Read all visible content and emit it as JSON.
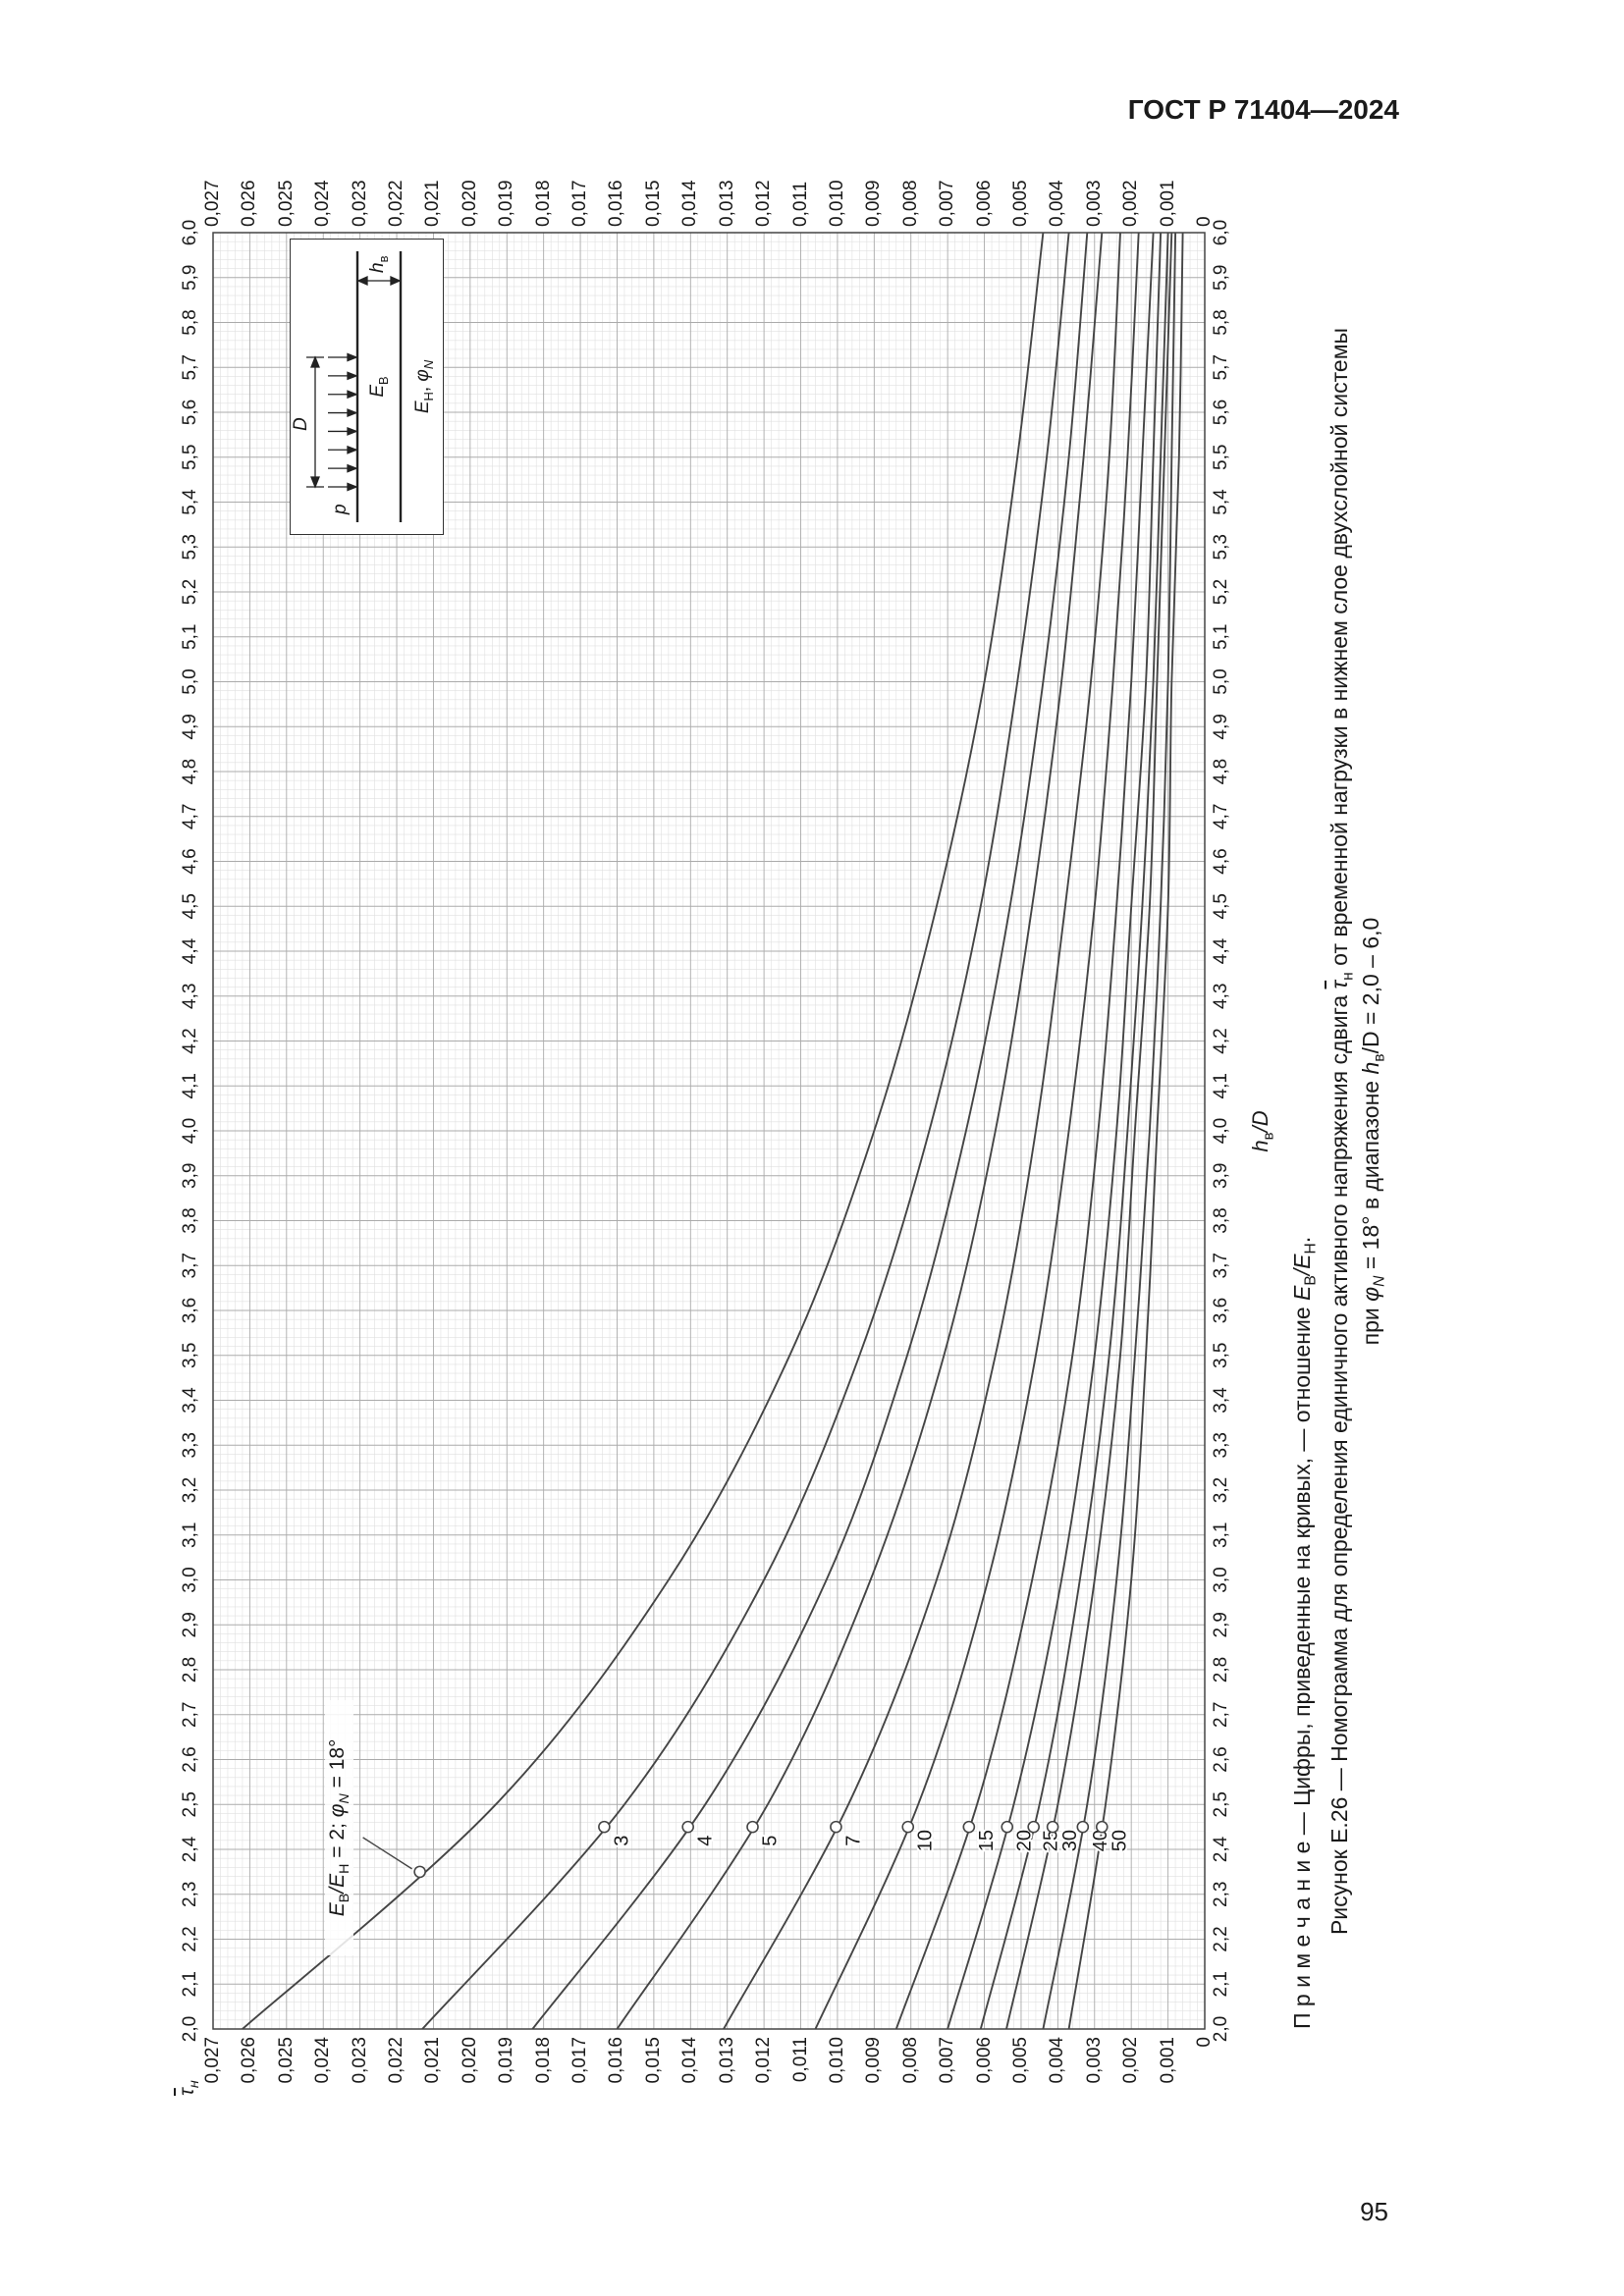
{
  "page": {
    "header": "ГОСТ Р 71404—2024",
    "page_number": "95"
  },
  "figure": {
    "y_title": {
      "tau": "τ",
      "sub": "н"
    },
    "x_title": {
      "h": "h",
      "sub": "в",
      "post": "/D"
    },
    "annotation": {
      "e1": "Е",
      "s1": "В",
      "e2": "/Е",
      "s2": "Н",
      "mid": " = 2; ",
      "phi": "φ",
      "phisub": "N",
      "end": " = 18°"
    },
    "note": {
      "p1": "П р и м е ч а н и е — Цифры, приведенные на кривых, — отношение ",
      "e1": "Е",
      "s1": "В",
      "e2": "/Е",
      "s2": "Н",
      "end": "."
    },
    "caption1": {
      "p1": "Рисунок Е.26 — Номограмма для определения единичного активного напряжения сдвига ",
      "tau": "τ",
      "sub": "н",
      "p2": " от временной нагрузки в нижнем слое двухслойной системы"
    },
    "caption2": {
      "p1": "при ",
      "phi": "φ",
      "phisub": "N",
      "p2": " = 18° в диапазоне ",
      "h": "h",
      "hsub": "в",
      "p3": "/D = 2,0 – 6,0"
    },
    "inset": {
      "p": "p",
      "d": "D",
      "eb": {
        "e": "Е",
        "s": "В"
      },
      "hb": {
        "h": "h",
        "s": "в"
      },
      "en": {
        "e": "Е",
        "s": "Н",
        "mid": ", ",
        "phi": "φ",
        "sub": "N"
      }
    }
  },
  "chart_data": {
    "type": "line",
    "title": "Номограмма для определения единичного активного напряжения сдвига в нижнем слое двухслойной системы при φN = 18°",
    "xlabel": "hв/D",
    "ylabel": "τн (с чертой)",
    "xlim": [
      2.0,
      6.0
    ],
    "ylim": [
      0,
      0.027
    ],
    "grid": {
      "minor_x_step": 0.02,
      "minor_y_step": 0.0002
    },
    "x_axis": {
      "min": 2.0,
      "max": 6.0,
      "tick_step": 0.1,
      "tick_labels": [
        "2,0",
        "2,1",
        "2,2",
        "2,3",
        "2,4",
        "2,5",
        "2,6",
        "2,7",
        "2,8",
        "2,9",
        "3,0",
        "3,1",
        "3,2",
        "3,3",
        "3,4",
        "3,5",
        "3,6",
        "3,7",
        "3,8",
        "3,9",
        "4,0",
        "4,1",
        "4,2",
        "4,3",
        "4,4",
        "4,5",
        "4,6",
        "4,7",
        "4,8",
        "4,9",
        "5,0",
        "5,1",
        "5,2",
        "5,3",
        "5,4",
        "5,5",
        "5,6",
        "5,7",
        "5,8",
        "5,9",
        "6,0"
      ]
    },
    "y_axis": {
      "min": 0,
      "max": 0.027,
      "tick_step": 0.001,
      "tick_labels_top_down": [
        "0,027",
        "0,026",
        "0,025",
        "0,024",
        "0,023",
        "0,022",
        "0,021",
        "0,020",
        "0,019",
        "0,018",
        "0,017",
        "0,016",
        "0,015",
        "0,014",
        "0,013",
        "0,012",
        "0,011",
        "0,010",
        "0,009",
        "0,008",
        "0,007",
        "0,006",
        "0,005",
        "0,004",
        "0,003",
        "0,002",
        "0,001",
        "0"
      ]
    },
    "series_note": "значения кривых — отношение Ев/Ен",
    "x": [
      2.0,
      2.5,
      3.0,
      3.5,
      4.0,
      4.5,
      5.0,
      5.5,
      6.0
    ],
    "series": [
      {
        "name": "2",
        "values": [
          0.0262,
          0.0193,
          0.0146,
          0.0113,
          0.009,
          0.0073,
          0.006,
          0.0051,
          0.0044
        ]
      },
      {
        "name": "3",
        "values": [
          0.0213,
          0.0158,
          0.012,
          0.0094,
          0.0075,
          0.0061,
          0.0051,
          0.0043,
          0.0037
        ]
      },
      {
        "name": "4",
        "values": [
          0.0183,
          0.0136,
          0.0103,
          0.0081,
          0.0065,
          0.0053,
          0.0044,
          0.0037,
          0.0032
        ]
      },
      {
        "name": "5",
        "values": [
          0.016,
          0.0119,
          0.0091,
          0.0071,
          0.0057,
          0.0047,
          0.0039,
          0.0033,
          0.0028
        ]
      },
      {
        "name": "7",
        "values": [
          0.0131,
          0.0097,
          0.0073,
          0.0057,
          0.0046,
          0.0038,
          0.0031,
          0.0026,
          0.0023
        ]
      },
      {
        "name": "10",
        "values": [
          0.0106,
          0.0078,
          0.0059,
          0.0046,
          0.0037,
          0.003,
          0.0025,
          0.0021,
          0.0018
        ]
      },
      {
        "name": "15",
        "values": [
          0.0084,
          0.0062,
          0.0047,
          0.0036,
          0.0029,
          0.0024,
          0.002,
          0.0017,
          0.0014
        ]
      },
      {
        "name": "20",
        "values": [
          0.007,
          0.0052,
          0.0039,
          0.003,
          0.0024,
          0.002,
          0.0016,
          0.0014,
          0.0012
        ]
      },
      {
        "name": "25",
        "values": [
          0.0061,
          0.0045,
          0.0034,
          0.0026,
          0.0021,
          0.0017,
          0.0014,
          0.0012,
          0.001
        ]
      },
      {
        "name": "30",
        "values": [
          0.0054,
          0.004,
          0.003,
          0.0023,
          0.0019,
          0.0015,
          0.0013,
          0.0011,
          0.0009
        ]
      },
      {
        "name": "40",
        "values": [
          0.0044,
          0.0032,
          0.0024,
          0.0019,
          0.0015,
          0.0012,
          0.001,
          0.0009,
          0.0008
        ]
      },
      {
        "name": "50",
        "values": [
          0.0037,
          0.0027,
          0.002,
          0.0016,
          0.0013,
          0.001,
          0.0009,
          0.0007,
          0.0006
        ]
      }
    ],
    "curve_label_x": 2.45,
    "annotation_attach_x": 2.35
  }
}
